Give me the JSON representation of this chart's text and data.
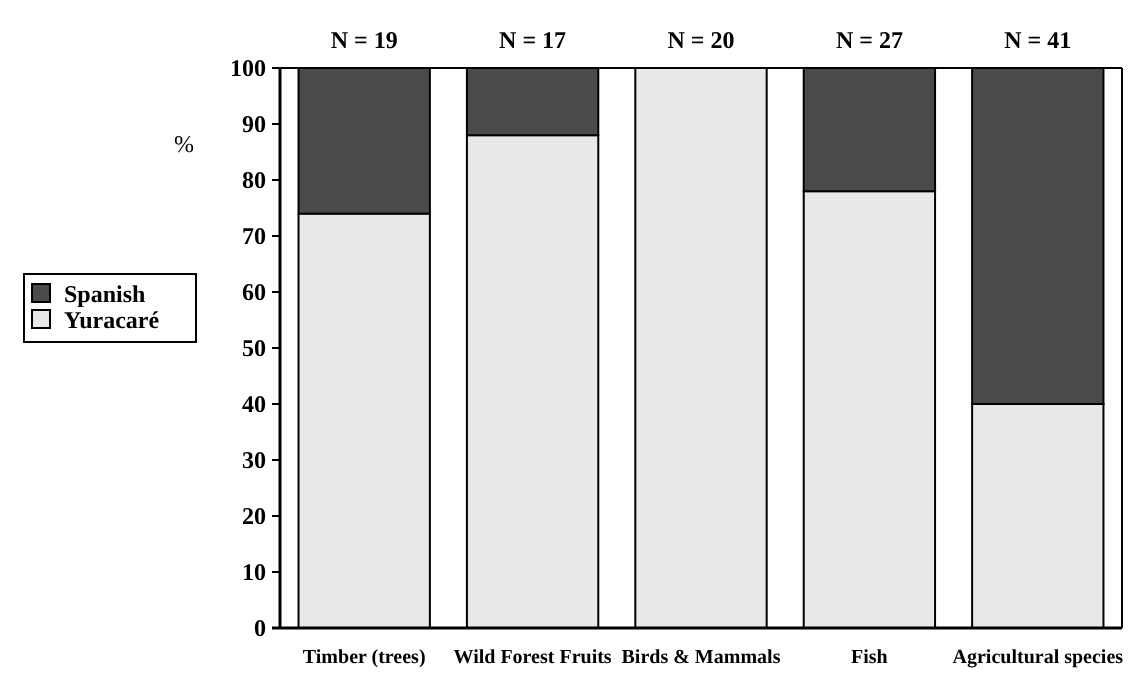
{
  "chart_data": {
    "type": "bar",
    "stacked": true,
    "ylabel": "%",
    "categories": [
      "Timber (trees)",
      "Wild Forest Fruits",
      "Birds & Mammals",
      "Fish",
      "Agricultural species"
    ],
    "series": [
      {
        "name": "Yuracaré",
        "color": "#e8e8e8",
        "values": [
          74,
          88,
          100,
          78,
          40
        ]
      },
      {
        "name": "Spanish",
        "color": "#4a4a4a",
        "values": [
          26,
          12,
          0,
          22,
          60
        ]
      }
    ],
    "ylim": [
      0,
      100
    ],
    "yticks": [
      0,
      10,
      20,
      30,
      40,
      50,
      60,
      70,
      80,
      90,
      100
    ],
    "legend": "left",
    "grid": false,
    "annotations": [
      {
        "text": "N = 19",
        "x": "Timber (trees)",
        "y": 100
      },
      {
        "text": "N = 17",
        "x": "Wild Forest Fruits",
        "y": 100
      },
      {
        "text": "N = 20",
        "x": "Birds & Mammals",
        "y": 100
      },
      {
        "text": "N = 27",
        "x": "Fish",
        "y": 100
      },
      {
        "text": "N = 41",
        "x": "Agricultural species",
        "y": 100
      }
    ]
  }
}
